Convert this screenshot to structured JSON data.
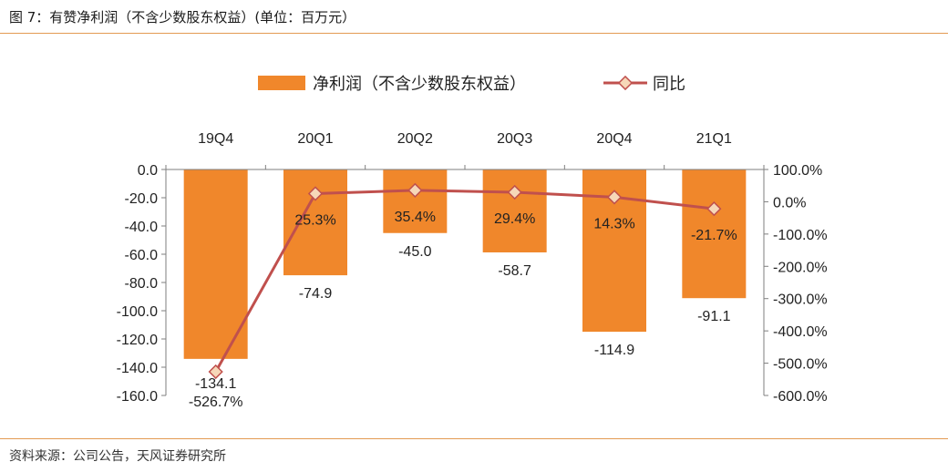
{
  "figure": {
    "title": "图 7：有赞净利润（不含少数股东权益）(单位：百万元）",
    "source": "资料来源：公司公告，天风证券研究所"
  },
  "colors": {
    "bar": "#f0872b",
    "line": "#c0504d",
    "marker_fill": "#f6d7b8",
    "axis": "#7f7f7f",
    "rule": "#e39a53"
  },
  "chart_data": {
    "type": "bar",
    "categories": [
      "19Q4",
      "20Q1",
      "20Q2",
      "20Q3",
      "20Q4",
      "21Q1"
    ],
    "series": [
      {
        "name": "净利润（不含少数股东权益）",
        "type": "bar",
        "axis": "left",
        "values": [
          -134.1,
          -74.9,
          -45.0,
          -58.7,
          -114.9,
          -91.1
        ],
        "labels": [
          "-134.1",
          "-74.9",
          "-45.0",
          "-58.7",
          "-114.9",
          "-91.1"
        ]
      },
      {
        "name": "同比",
        "type": "line",
        "axis": "right",
        "values": [
          -526.7,
          25.3,
          35.4,
          29.4,
          14.3,
          -21.7
        ],
        "labels": [
          "-526.7%",
          "25.3%",
          "35.4%",
          "29.4%",
          "14.3%",
          "-21.7%"
        ]
      }
    ],
    "y_left": {
      "ylim": [
        -160,
        0
      ],
      "ticks": [
        0,
        -20,
        -40,
        -60,
        -80,
        -100,
        -120,
        -140,
        -160
      ],
      "tick_labels": [
        "0.0",
        "-20.0",
        "-40.0",
        "-60.0",
        "-80.0",
        "-100.0",
        "-120.0",
        "-140.0",
        "-160.0"
      ]
    },
    "y_right": {
      "ylim": [
        -600,
        100
      ],
      "ticks": [
        100,
        0,
        -100,
        -200,
        -300,
        -400,
        -500,
        -600
      ],
      "tick_labels": [
        "100.0%",
        "0.0%",
        "-100.0%",
        "-200.0%",
        "-300.0%",
        "-400.0%",
        "-500.0%",
        "-600.0%"
      ]
    },
    "x_axis_position": "top",
    "legend": {
      "position": "top-center",
      "entries": [
        "净利润（不含少数股东权益）",
        "同比"
      ]
    },
    "grid": false
  }
}
